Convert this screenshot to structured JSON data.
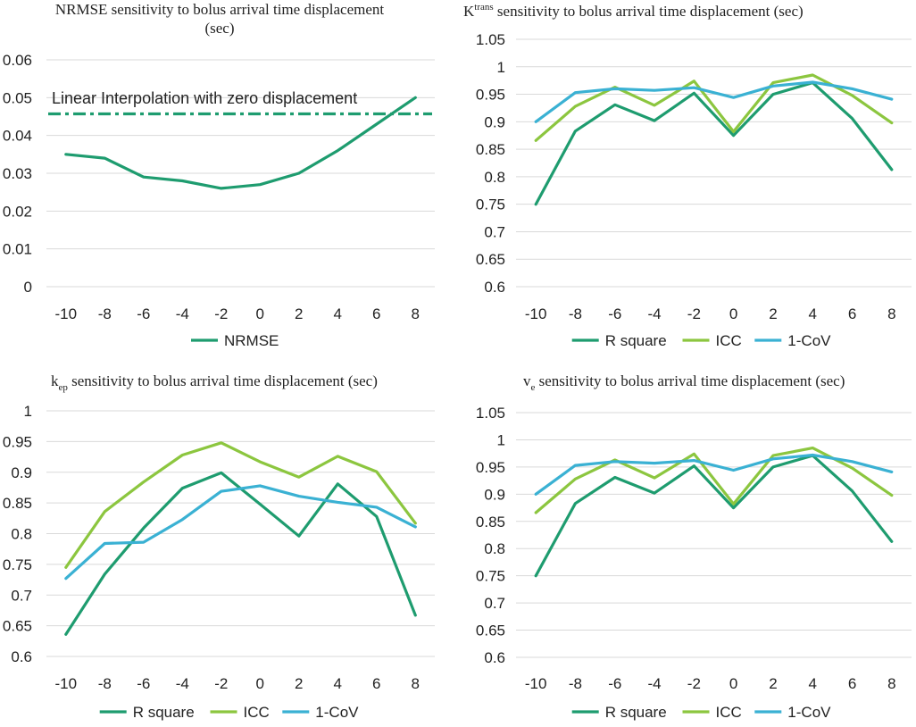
{
  "colors": {
    "r_square": "#1e9c6f",
    "icc": "#8cc63f",
    "cov": "#3ab1d3",
    "nrmse": "#1e9c6f",
    "reference": "#1e9c6f"
  },
  "chart_data": [
    {
      "id": "nrmse",
      "type": "line",
      "title_lines": [
        "NRMSE sensitivity to bolus arrival time displacement",
        "(sec)"
      ],
      "x": [
        "-10",
        "-8",
        "-6",
        "-4",
        "-2",
        "0",
        "2",
        "4",
        "6",
        "8"
      ],
      "ylim": [
        0,
        0.06
      ],
      "yticks": [
        0,
        0.01,
        0.02,
        0.03,
        0.04,
        0.05,
        0.06
      ],
      "ytick_labels": [
        "0",
        "0.01",
        "0.02",
        "0.03",
        "0.04",
        "0.05",
        "0.06"
      ],
      "series": [
        {
          "name": "NRMSE",
          "color_key": "nrmse",
          "values": [
            0.035,
            0.034,
            0.029,
            0.028,
            0.026,
            0.027,
            0.03,
            0.036,
            0.043,
            0.05
          ]
        }
      ],
      "reference_line": {
        "value": 0.0457,
        "label": "Linear Interpolation with zero displacement",
        "style": "dash-dot"
      }
    },
    {
      "id": "ktrans",
      "type": "line",
      "title_main": "K",
      "title_sup": "trans",
      "title_rest": " sensitivity to bolus arrival time displacement (sec)",
      "x": [
        "-10",
        "-8",
        "-6",
        "-4",
        "-2",
        "0",
        "2",
        "4",
        "6",
        "8"
      ],
      "ylim": [
        0.6,
        1.05
      ],
      "yticks": [
        0.6,
        0.65,
        0.7,
        0.75,
        0.8,
        0.85,
        0.9,
        0.95,
        1,
        1.05
      ],
      "ytick_labels": [
        "0.6",
        "0.65",
        "0.7",
        "0.75",
        "0.8",
        "0.85",
        "0.9",
        "0.95",
        "1",
        "1.05"
      ],
      "series": [
        {
          "name": "R square",
          "color_key": "r_square",
          "values": [
            0.75,
            0.883,
            0.931,
            0.902,
            0.952,
            0.875,
            0.95,
            0.971,
            0.906,
            0.813
          ]
        },
        {
          "name": "ICC",
          "color_key": "icc",
          "values": [
            0.866,
            0.928,
            0.963,
            0.93,
            0.974,
            0.882,
            0.971,
            0.985,
            0.948,
            0.898
          ]
        },
        {
          "name": "1-CoV",
          "color_key": "cov",
          "values": [
            0.9,
            0.953,
            0.96,
            0.957,
            0.962,
            0.944,
            0.965,
            0.972,
            0.96,
            0.941
          ]
        }
      ]
    },
    {
      "id": "kep",
      "type": "line",
      "title_main": "k",
      "title_sub": "ep",
      "title_rest": " sensitivity to bolus arrival time displacement (sec)",
      "x": [
        "-10",
        "-8",
        "-6",
        "-4",
        "-2",
        "0",
        "2",
        "4",
        "6",
        "8"
      ],
      "ylim": [
        0.6,
        1
      ],
      "yticks": [
        0.6,
        0.65,
        0.7,
        0.75,
        0.8,
        0.85,
        0.9,
        0.95,
        1
      ],
      "ytick_labels": [
        "0.6",
        "0.65",
        "0.7",
        "0.75",
        "0.8",
        "0.85",
        "0.9",
        "0.95",
        "1"
      ],
      "series": [
        {
          "name": "R square",
          "color_key": "r_square",
          "values": [
            0.636,
            0.734,
            0.809,
            0.874,
            0.899,
            0.848,
            0.796,
            0.881,
            0.828,
            0.667
          ]
        },
        {
          "name": "ICC",
          "color_key": "icc",
          "values": [
            0.745,
            0.836,
            0.884,
            0.928,
            0.948,
            0.917,
            0.892,
            0.926,
            0.901,
            0.817
          ]
        },
        {
          "name": "1-CoV",
          "color_key": "cov",
          "values": [
            0.727,
            0.784,
            0.786,
            0.823,
            0.869,
            0.878,
            0.861,
            0.851,
            0.843,
            0.811
          ]
        }
      ]
    },
    {
      "id": "ve",
      "type": "line",
      "title_main": "v",
      "title_sub": "e",
      "title_rest": " sensitivity to bolus arrival time displacement (sec)",
      "x": [
        "-10",
        "-8",
        "-6",
        "-4",
        "-2",
        "0",
        "2",
        "4",
        "6",
        "8"
      ],
      "ylim": [
        0.6,
        1.05
      ],
      "yticks": [
        0.6,
        0.65,
        0.7,
        0.75,
        0.8,
        0.85,
        0.9,
        0.95,
        1,
        1.05
      ],
      "ytick_labels": [
        "0.6",
        "0.65",
        "0.7",
        "0.75",
        "0.8",
        "0.85",
        "0.9",
        "0.95",
        "1",
        "1.05"
      ],
      "series": [
        {
          "name": "R square",
          "color_key": "r_square",
          "values": [
            0.75,
            0.883,
            0.931,
            0.902,
            0.952,
            0.875,
            0.95,
            0.971,
            0.906,
            0.813
          ]
        },
        {
          "name": "ICC",
          "color_key": "icc",
          "values": [
            0.866,
            0.928,
            0.963,
            0.93,
            0.974,
            0.882,
            0.971,
            0.985,
            0.948,
            0.898
          ]
        },
        {
          "name": "1-CoV",
          "color_key": "cov",
          "values": [
            0.9,
            0.953,
            0.96,
            0.957,
            0.962,
            0.944,
            0.965,
            0.972,
            0.96,
            0.941
          ]
        }
      ]
    }
  ]
}
